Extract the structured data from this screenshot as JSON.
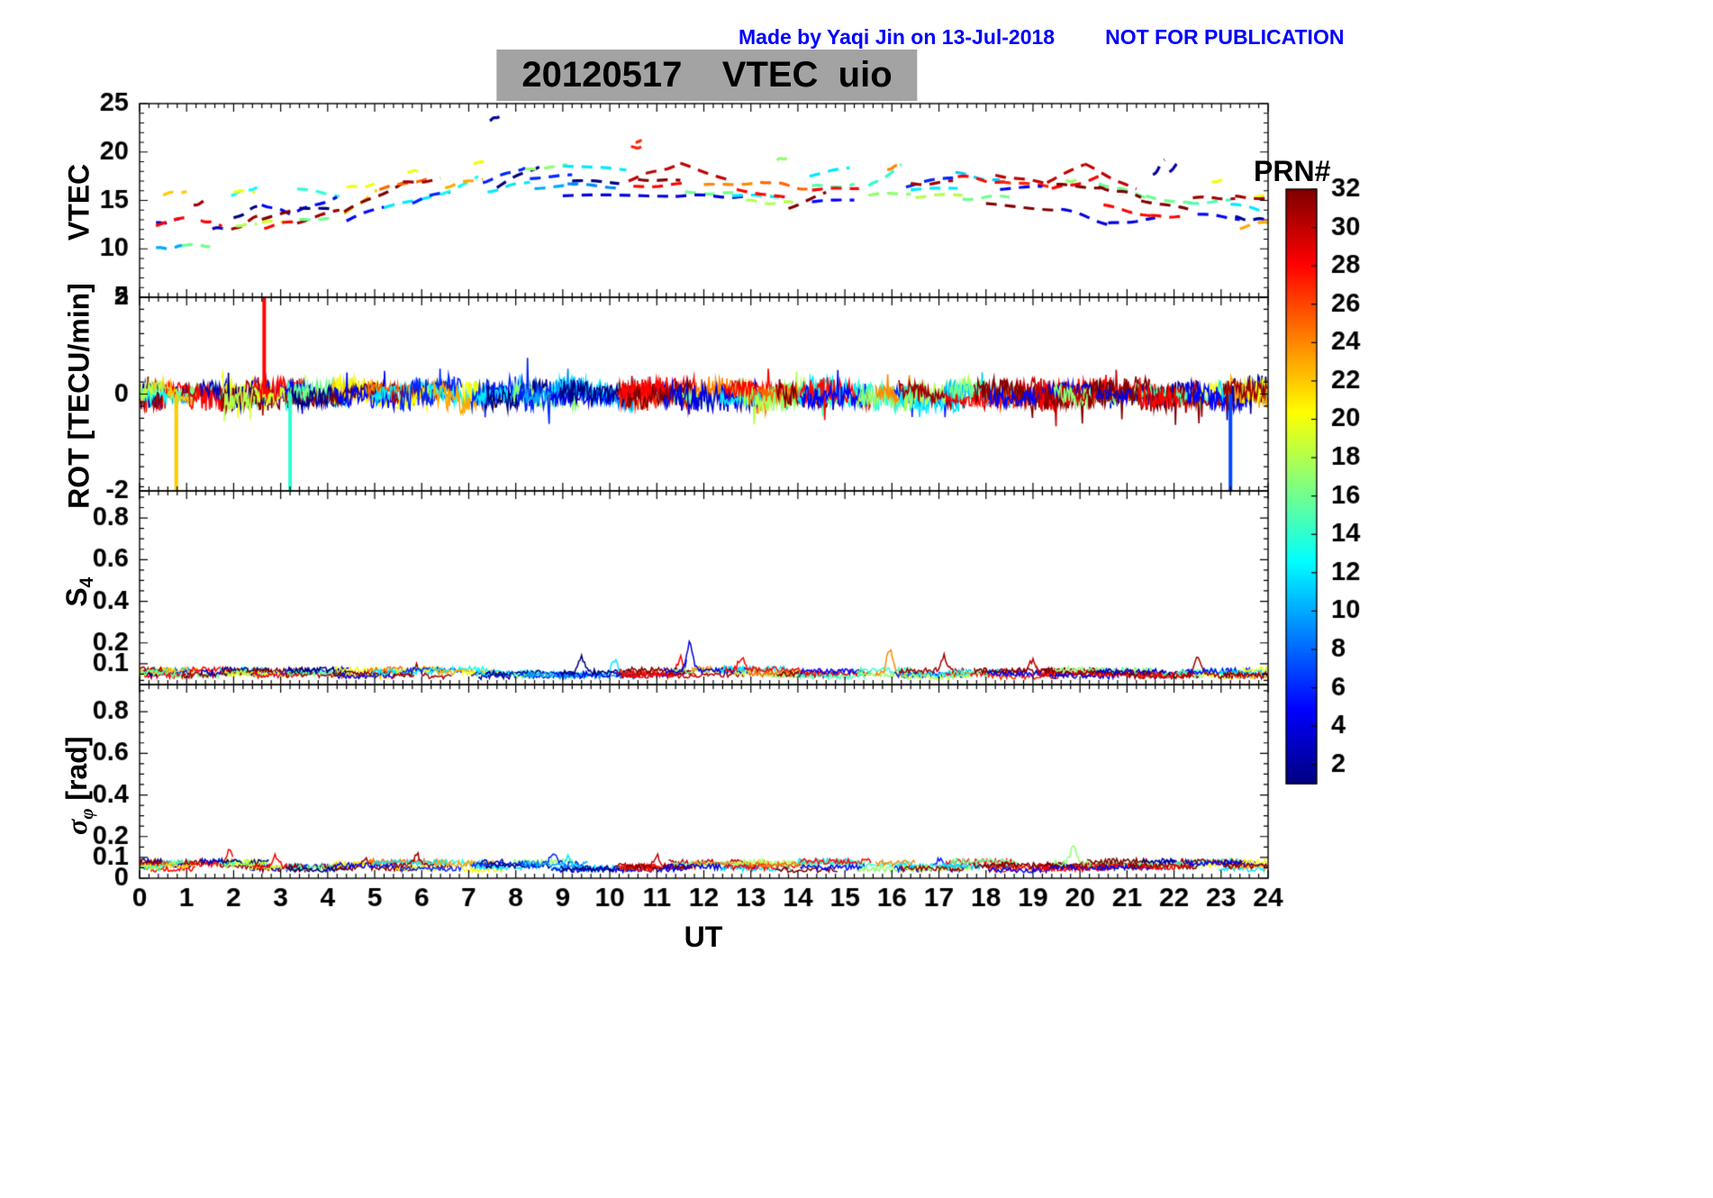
{
  "annotation": {
    "credit": "Made by Yaqi Jin on 13-Jul-2018",
    "warning": "NOT FOR PUBLICATION",
    "color": "#0000FF"
  },
  "title": {
    "text": "20120517    VTEC  uio",
    "bg": "#a3a3a3"
  },
  "chart_data": {
    "type": "line",
    "x_axis": {
      "label": "UT",
      "min": 0,
      "max": 24,
      "minor_step": 0.2,
      "ticks": [
        0,
        1,
        2,
        3,
        4,
        5,
        6,
        7,
        8,
        9,
        10,
        11,
        12,
        13,
        14,
        15,
        16,
        17,
        18,
        19,
        20,
        21,
        22,
        23,
        24
      ]
    },
    "colorbar": {
      "label": "PRN#",
      "min": 1,
      "max": 32,
      "colormap": "jet",
      "ticks": [
        2,
        4,
        6,
        8,
        10,
        12,
        14,
        16,
        18,
        20,
        22,
        24,
        26,
        28,
        30,
        32
      ]
    },
    "panels": [
      {
        "id": "vtec",
        "ylabel": "VTEC",
        "ylim": [
          5,
          25
        ],
        "yticks": [
          5,
          10,
          15,
          20,
          25
        ],
        "yminor": 1,
        "line_style": "dashed",
        "units": "TECU",
        "tracks": [
          [
            10,
            0.35,
            0.95,
            10.0,
            10.25
          ],
          [
            3,
            0.35,
            0.85,
            12.6,
            13.0
          ],
          [
            28,
            0.35,
            0.95,
            12.4,
            13.2
          ],
          [
            22,
            0.5,
            1.0,
            15.6,
            16.0
          ],
          [
            16,
            0.9,
            1.5,
            10.45,
            10.3
          ],
          [
            31,
            1.15,
            1.4,
            14.6,
            14.9
          ],
          [
            28,
            1.3,
            1.75,
            13.0,
            12.4
          ],
          [
            3,
            1.55,
            1.8,
            12.0,
            12.2
          ],
          [
            13,
            1.95,
            2.5,
            15.6,
            16.4
          ],
          [
            20,
            2.0,
            2.45,
            15.8,
            15.95
          ],
          [
            1,
            2.0,
            2.5,
            13.1,
            14.4
          ],
          [
            31,
            1.95,
            2.5,
            11.9,
            13.3
          ],
          [
            18,
            2.05,
            2.5,
            12.4,
            12.6
          ],
          [
            5,
            2.6,
            3.3,
            14.6,
            13.5
          ],
          [
            32,
            2.6,
            3.35,
            13.1,
            14.0
          ],
          [
            19,
            2.6,
            3.3,
            12.7,
            12.9
          ],
          [
            28,
            2.65,
            3.3,
            12.2,
            12.9
          ],
          [
            14,
            3.35,
            4.25,
            16.2,
            15.5
          ],
          [
            5,
            3.35,
            4.2,
            13.9,
            15.3
          ],
          [
            31,
            3.35,
            4.25,
            12.8,
            13.9
          ],
          [
            16,
            3.4,
            4.2,
            13.0,
            13.2
          ],
          [
            1,
            3.4,
            4.15,
            14.3,
            14.0
          ],
          [
            22,
            4.35,
            5.05,
            13.6,
            16.0
          ],
          [
            20,
            4.4,
            5.0,
            16.3,
            16.6
          ],
          [
            32,
            4.35,
            5.6,
            13.8,
            16.8
          ],
          [
            5,
            4.4,
            5.2,
            12.9,
            14.4
          ],
          [
            25,
            5.1,
            6.2,
            16.1,
            17.4
          ],
          [
            12,
            5.2,
            6.3,
            14.1,
            15.7
          ],
          [
            31,
            5.6,
            6.4,
            16.8,
            17.2
          ],
          [
            20,
            5.7,
            6.1,
            17.9,
            18.1
          ],
          [
            6,
            5.8,
            6.6,
            14.8,
            16.0
          ],
          [
            13,
            6.4,
            7.2,
            15.6,
            17.4
          ],
          [
            23,
            6.5,
            7.3,
            16.4,
            17.3
          ],
          [
            20,
            7.1,
            7.5,
            18.8,
            19.0
          ],
          [
            2,
            7.45,
            7.65,
            23.3,
            23.7
          ],
          [
            6,
            7.3,
            8.2,
            16.9,
            18.4
          ],
          [
            12,
            7.4,
            8.3,
            15.9,
            17.0
          ],
          [
            1,
            7.6,
            8.5,
            16.4,
            18.6
          ],
          [
            17,
            8.2,
            9.1,
            18.3,
            18.6
          ],
          [
            6,
            8.3,
            9.2,
            17.3,
            17.6
          ],
          [
            10,
            8.4,
            9.3,
            16.3,
            16.6
          ],
          [
            12,
            9.0,
            10.35,
            18.7,
            18.0
          ],
          [
            9,
            9.1,
            10.3,
            16.6,
            16.4
          ],
          [
            4,
            9.0,
            11.4,
            15.5,
            15.5
          ],
          [
            1,
            9.2,
            10.2,
            17.0,
            16.8
          ],
          [
            27,
            10.45,
            10.78,
            20.4,
            20.7
          ],
          [
            27,
            10.55,
            10.68,
            21.05,
            21.1
          ],
          [
            30,
            10.4,
            11.5,
            17.1,
            18.8
          ],
          [
            28,
            10.5,
            11.6,
            16.4,
            16.7
          ],
          [
            32,
            10.6,
            11.5,
            17.2,
            17.0
          ],
          [
            30,
            11.5,
            12.6,
            18.8,
            17.0
          ],
          [
            16,
            11.6,
            12.7,
            15.8,
            15.7
          ],
          [
            24,
            12.0,
            13.1,
            16.5,
            16.9
          ],
          [
            4,
            11.4,
            12.9,
            15.5,
            15.4
          ],
          [
            12,
            12.6,
            13.6,
            15.5,
            15.4
          ],
          [
            18,
            12.9,
            13.9,
            14.9,
            14.7
          ],
          [
            28,
            12.7,
            13.8,
            16.2,
            15.2
          ],
          [
            17,
            13.55,
            13.78,
            19.2,
            19.4
          ],
          [
            25,
            13.2,
            14.2,
            17.0,
            16.2
          ],
          [
            32,
            13.8,
            14.6,
            14.2,
            15.8
          ],
          [
            12,
            14.25,
            15.1,
            17.6,
            18.3
          ],
          [
            15,
            14.3,
            15.2,
            16.4,
            16.6
          ],
          [
            28,
            14.3,
            15.3,
            16.1,
            16.3
          ],
          [
            5,
            14.3,
            15.2,
            14.8,
            15.1
          ],
          [
            14,
            15.5,
            16.2,
            16.4,
            18.6
          ],
          [
            17,
            15.5,
            16.4,
            15.5,
            15.8
          ],
          [
            24,
            15.9,
            16.25,
            18.3,
            18.6
          ],
          [
            6,
            16.3,
            17.3,
            16.5,
            17.4
          ],
          [
            12,
            16.4,
            17.4,
            16.1,
            16.3
          ],
          [
            18,
            16.5,
            17.5,
            15.4,
            15.6
          ],
          [
            31,
            16.4,
            17.3,
            16.7,
            16.9
          ],
          [
            11,
            17.35,
            18.3,
            17.8,
            17.0
          ],
          [
            28,
            17.4,
            18.4,
            17.5,
            16.8
          ],
          [
            16,
            17.5,
            18.5,
            15.2,
            15.4
          ],
          [
            30,
            18.2,
            19.3,
            17.6,
            16.8
          ],
          [
            27,
            18.3,
            19.4,
            17.0,
            16.4
          ],
          [
            32,
            18.0,
            19.6,
            14.6,
            14.0
          ],
          [
            5,
            18.3,
            19.2,
            16.2,
            16.4
          ],
          [
            30,
            19.3,
            20.1,
            16.9,
            18.7
          ],
          [
            28,
            19.4,
            20.4,
            16.1,
            17.4
          ],
          [
            32,
            19.5,
            20.5,
            16.6,
            16.3
          ],
          [
            4,
            19.6,
            20.6,
            14.1,
            12.6
          ],
          [
            17,
            19.7,
            20.0,
            17.0,
            17.1
          ],
          [
            30,
            20.1,
            21.2,
            18.7,
            16.1
          ],
          [
            16,
            20.4,
            21.4,
            16.8,
            15.4
          ],
          [
            28,
            20.5,
            21.5,
            14.4,
            13.5
          ],
          [
            32,
            20.4,
            21.3,
            16.4,
            15.4
          ],
          [
            4,
            20.6,
            21.6,
            12.6,
            13.1
          ],
          [
            2,
            21.55,
            21.8,
            17.6,
            19.2
          ],
          [
            2,
            21.9,
            22.1,
            18.0,
            18.9
          ],
          [
            16,
            21.4,
            22.4,
            15.5,
            14.6
          ],
          [
            32,
            21.3,
            22.3,
            15.0,
            14.1
          ],
          [
            28,
            21.5,
            22.2,
            13.4,
            13.3
          ],
          [
            15,
            22.3,
            23.2,
            14.8,
            14.9
          ],
          [
            20,
            22.8,
            23.05,
            17.0,
            17.1
          ],
          [
            31,
            22.4,
            23.3,
            15.3,
            15.2
          ],
          [
            5,
            22.5,
            23.4,
            13.6,
            13.1
          ],
          [
            12,
            23.2,
            24.0,
            14.6,
            13.8
          ],
          [
            2,
            23.3,
            24.0,
            13.2,
            12.9
          ],
          [
            23,
            23.4,
            24.0,
            12.2,
            12.8
          ],
          [
            20,
            23.7,
            24.0,
            15.2,
            15.6
          ],
          [
            31,
            23.3,
            24.0,
            15.4,
            15.2
          ]
        ]
      },
      {
        "id": "rot",
        "ylabel": "ROT [TECU/min]",
        "ylim": [
          -2,
          2
        ],
        "yticks": [
          -2,
          0,
          2
        ],
        "yminor": 0.25,
        "line_style": "solid",
        "noise_band": 0.45,
        "extra_arcs": [
          [
            22,
            0,
            0.7
          ],
          [
            28,
            0,
            0.6
          ],
          [
            2,
            0,
            0.5
          ],
          [
            31,
            0,
            0.5
          ],
          [
            13,
            0,
            0.6
          ],
          [
            18,
            0,
            0.5
          ]
        ],
        "spikes": [
          [
            22,
            0.78,
            -2
          ],
          [
            28,
            2.65,
            2
          ],
          [
            14,
            3.2,
            -2
          ],
          [
            7,
            23.2,
            -2
          ]
        ]
      },
      {
        "id": "s4",
        "ylabel_main": "S",
        "ylabel_sub": "4",
        "ylim": [
          0,
          0.93
        ],
        "yticks": [
          0.1,
          0.2,
          0.4,
          0.6,
          0.8
        ],
        "yminor": 0.05,
        "baseline": 0.04,
        "bumps": [
          [
            4,
            11.7,
            0.13
          ],
          [
            28,
            11.5,
            0.08
          ],
          [
            24,
            15.95,
            0.12
          ],
          [
            1,
            9.4,
            0.07
          ],
          [
            31,
            22.5,
            0.09
          ],
          [
            31,
            17.1,
            0.07
          ],
          [
            12,
            10.1,
            0.07
          ],
          [
            28,
            12.8,
            0.06
          ],
          [
            30,
            19.0,
            0.06
          ],
          [
            31,
            5.9,
            0.05
          ]
        ]
      },
      {
        "id": "sigma_phi",
        "ylabel_main": "σ",
        "ylabel_sub": "φ",
        "ylabel_suffix": " [rad]",
        "ylim": [
          0,
          0.93
        ],
        "yticks": [
          0,
          0.1,
          0.2,
          0.4,
          0.6,
          0.8
        ],
        "yminor": 0.05,
        "baseline": 0.045,
        "bumps": [
          [
            28,
            1.9,
            0.06
          ],
          [
            28,
            2.9,
            0.05
          ],
          [
            31,
            5.9,
            0.05
          ],
          [
            6,
            8.8,
            0.06
          ],
          [
            17,
            19.85,
            0.08
          ],
          [
            12,
            9.1,
            0.05
          ],
          [
            6,
            17.0,
            0.05
          ],
          [
            30,
            11.0,
            0.05
          ],
          [
            32,
            4.8,
            0.05
          ]
        ]
      }
    ]
  }
}
